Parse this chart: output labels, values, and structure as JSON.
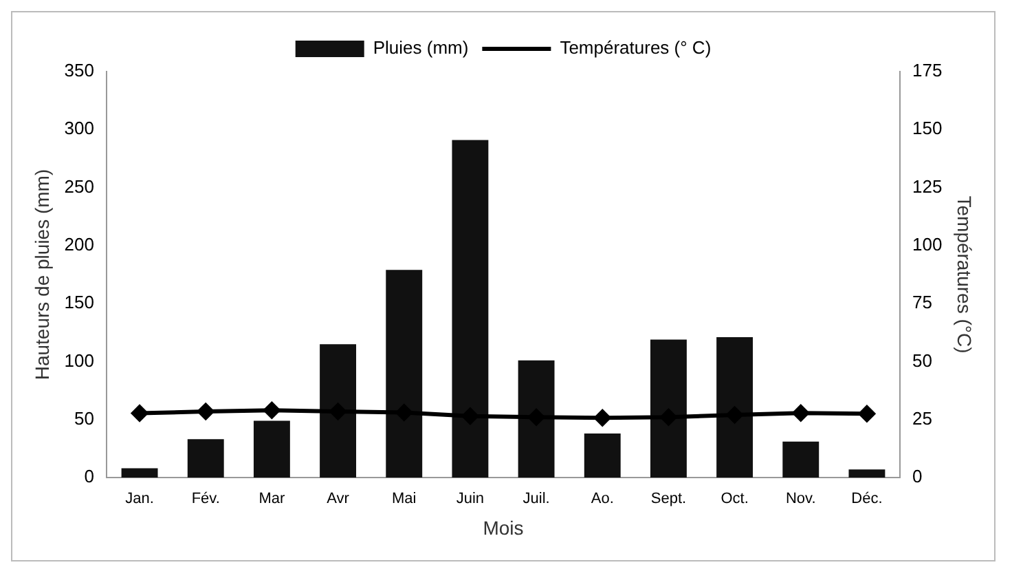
{
  "chart_data": {
    "type": "bar",
    "xlabel": "Mois",
    "ylabel": "Hauteurs de pluies (mm)",
    "y2label": "Températures (°C)",
    "categories": [
      "Jan.",
      "Fév.",
      "Mar",
      "Avr",
      "Mai",
      "Juin",
      "Juil.",
      "Ao.",
      "Sept.",
      "Oct.",
      "Nov.",
      "Déc."
    ],
    "series": [
      {
        "name": "Pluies (mm)",
        "color": "#111111",
        "values": [
          8,
          33,
          49,
          115,
          179,
          291,
          101,
          38,
          119,
          121,
          31,
          7
        ]
      },
      {
        "name": "Températures (° C)",
        "type": "line",
        "axis": "y2",
        "color": "#000000",
        "marker": "diamond",
        "values": [
          27.7,
          28.5,
          29,
          28.5,
          28,
          26.5,
          26,
          25.7,
          26,
          27,
          27.8,
          27.5
        ]
      }
    ],
    "ylim": [
      0,
      350
    ],
    "yticks": [
      0,
      50,
      100,
      150,
      200,
      250,
      300,
      350
    ],
    "y2lim": [
      0,
      175
    ],
    "y2ticks": [
      0,
      25,
      50,
      75,
      100,
      125,
      150,
      175
    ],
    "legend": "top",
    "grid": false
  }
}
